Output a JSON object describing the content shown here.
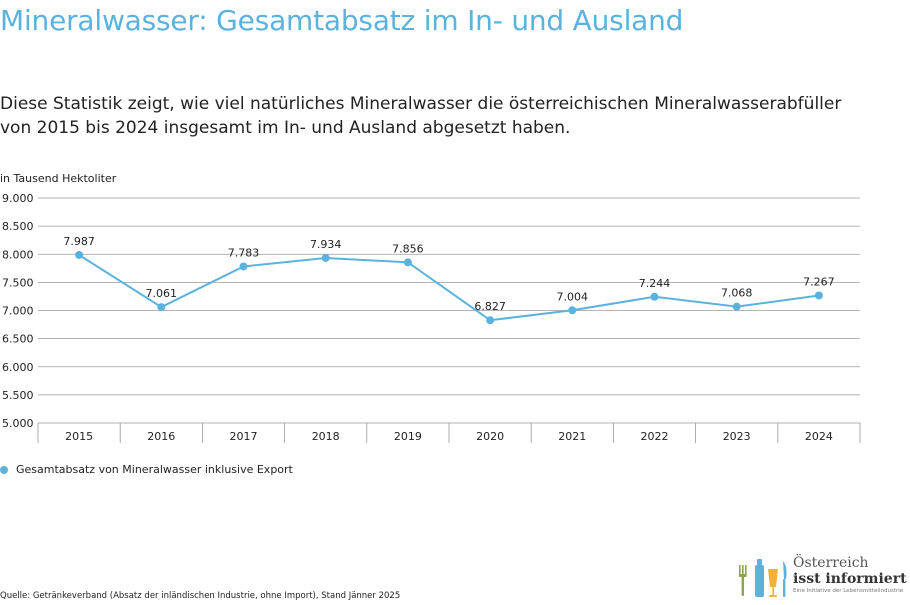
{
  "header": {
    "title": "Mineralwasser: Gesamtabsatz im In- und Ausland",
    "description_line1": "Diese Statistik zeigt, wie viel natürliches Mineralwasser die österreichischen Mineralwasserabfüller",
    "description_line2": "von 2015 bis 2024 insgesamt im In- und Ausland abgesetzt haben."
  },
  "chart_data": {
    "type": "line",
    "ylabel": "in Tausend Hektoliter",
    "categories": [
      "2015",
      "2016",
      "2017",
      "2018",
      "2019",
      "2020",
      "2021",
      "2022",
      "2023",
      "2024"
    ],
    "series": [
      {
        "name": "Gesamtabsatz von Mineralwasser inklusive Export",
        "values": [
          7987,
          7061,
          7783,
          7934,
          7856,
          6827,
          7004,
          7244,
          7068,
          7267
        ],
        "labels": [
          "7.987",
          "7.061",
          "7.783",
          "7.934",
          "7.856",
          "6.827",
          "7.004",
          "7.244",
          "7.068",
          "7.267"
        ]
      }
    ],
    "ylim": [
      5000,
      9000
    ],
    "yticks": [
      5000,
      5500,
      6000,
      6500,
      7000,
      7500,
      8000,
      8500,
      9000
    ],
    "ytick_labels": [
      "5.000",
      "5.500",
      "6.000",
      "6.500",
      "7.000",
      "7.500",
      "8.000",
      "8.500",
      "9.000"
    ],
    "grid": true,
    "legend_position": "bottom-left",
    "color": "#5bb3dd"
  },
  "footer": {
    "source": "Quelle: Getränkeverband (Absatz der inländischen Industrie, ohne Import),  Stand Jänner 2025"
  },
  "logo": {
    "line1": "Österreich",
    "line2": "isst informiert",
    "line3": "Eine Initiative der Lebensmittelindustrie"
  }
}
